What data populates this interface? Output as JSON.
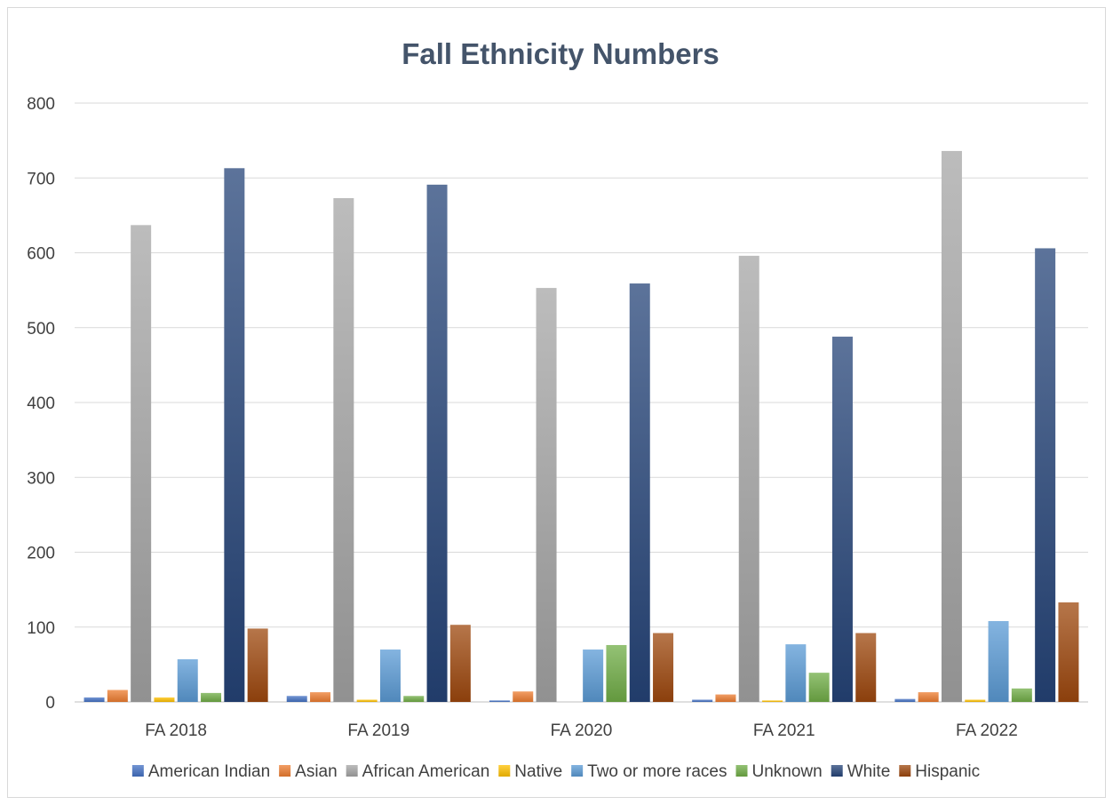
{
  "chart_data": {
    "type": "bar",
    "title": "Fall Ethnicity Numbers",
    "xlabel": "",
    "ylabel": "",
    "ylim": [
      0,
      800
    ],
    "yticks": [
      0,
      100,
      200,
      300,
      400,
      500,
      600,
      700,
      800
    ],
    "grid": true,
    "legend_position": "bottom",
    "categories": [
      "FA 2018",
      "FA 2019",
      "FA 2020",
      "FA 2021",
      "FA 2022"
    ],
    "series": [
      {
        "name": "American Indian",
        "color": "#4472C4",
        "values": [
          6,
          8,
          2,
          3,
          4
        ]
      },
      {
        "name": "Asian",
        "color": "#ED7D31",
        "values": [
          16,
          13,
          14,
          10,
          13
        ]
      },
      {
        "name": "African American",
        "color": "#A5A5A5",
        "values": [
          637,
          673,
          553,
          596,
          736
        ]
      },
      {
        "name": "Native",
        "color": "#FFC000",
        "values": [
          6,
          3,
          0,
          2,
          3
        ]
      },
      {
        "name": "Two or more races",
        "color": "#5B9BD5",
        "values": [
          57,
          70,
          70,
          77,
          108
        ]
      },
      {
        "name": "Unknown",
        "color": "#70AD47",
        "values": [
          12,
          8,
          76,
          39,
          18
        ]
      },
      {
        "name": "White",
        "color": "#264478",
        "values": [
          713,
          691,
          559,
          488,
          606
        ]
      },
      {
        "name": "Hispanic",
        "color": "#9E480E",
        "values": [
          98,
          103,
          92,
          92,
          133
        ]
      }
    ]
  }
}
